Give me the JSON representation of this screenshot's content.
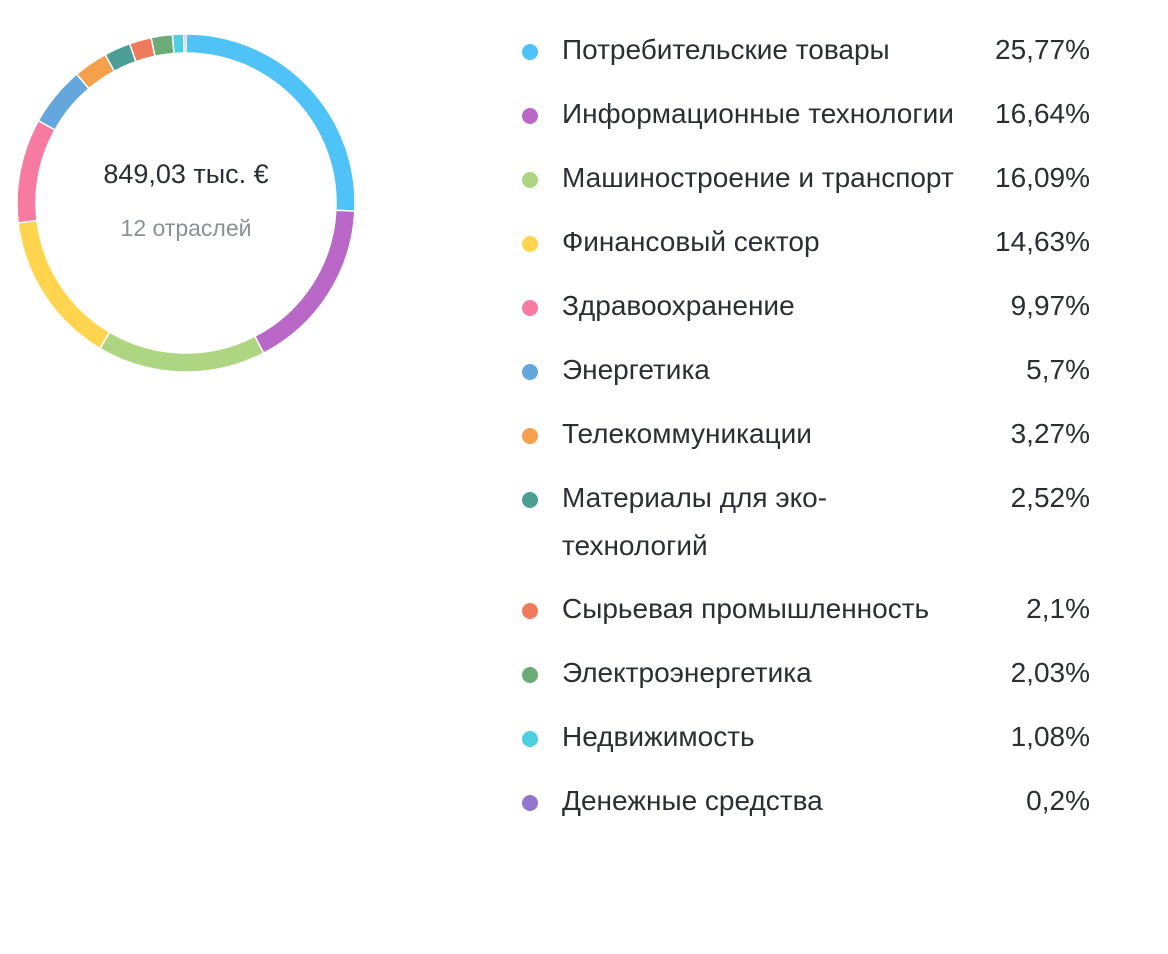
{
  "chart_data": {
    "type": "pie",
    "variant": "donut",
    "center": {
      "total": "849,03 тыс. €",
      "count": "12 отраслей"
    },
    "slices": [
      {
        "label": "Потребительские товары",
        "value": 25.77,
        "value_text": "25,77%",
        "color": "#4fc3f7"
      },
      {
        "label": "Информационные технологии",
        "value": 16.64,
        "value_text": "16,64%",
        "color": "#ba68c8"
      },
      {
        "label": "Машиностроение и транспорт",
        "value": 16.09,
        "value_text": "16,09%",
        "color": "#aed581"
      },
      {
        "label": "Финансовый сектор",
        "value": 14.63,
        "value_text": "14,63%",
        "color": "#ffd54f"
      },
      {
        "label": "Здравоохранение",
        "value": 9.97,
        "value_text": "9,97%",
        "color": "#f77aa1"
      },
      {
        "label": "Энергетика",
        "value": 5.7,
        "value_text": "5,7%",
        "color": "#64a7dd"
      },
      {
        "label": "Телекоммуникации",
        "value": 3.27,
        "value_text": "3,27%",
        "color": "#f6a04d"
      },
      {
        "label": "Материалы для эко-технологий",
        "value": 2.52,
        "value_text": "2,52%",
        "color": "#4a9e94"
      },
      {
        "label": "Сырьевая промышленность",
        "value": 2.1,
        "value_text": "2,1%",
        "color": "#ee7c5c"
      },
      {
        "label": "Электроэнергетика",
        "value": 2.03,
        "value_text": "2,03%",
        "color": "#6aab76"
      },
      {
        "label": "Недвижимость",
        "value": 1.08,
        "value_text": "1,08%",
        "color": "#4dd0e1"
      },
      {
        "label": "Денежные средства",
        "value": 0.2,
        "value_text": "0,2%",
        "color": "#9575cd"
      }
    ],
    "legend_position": "right"
  }
}
